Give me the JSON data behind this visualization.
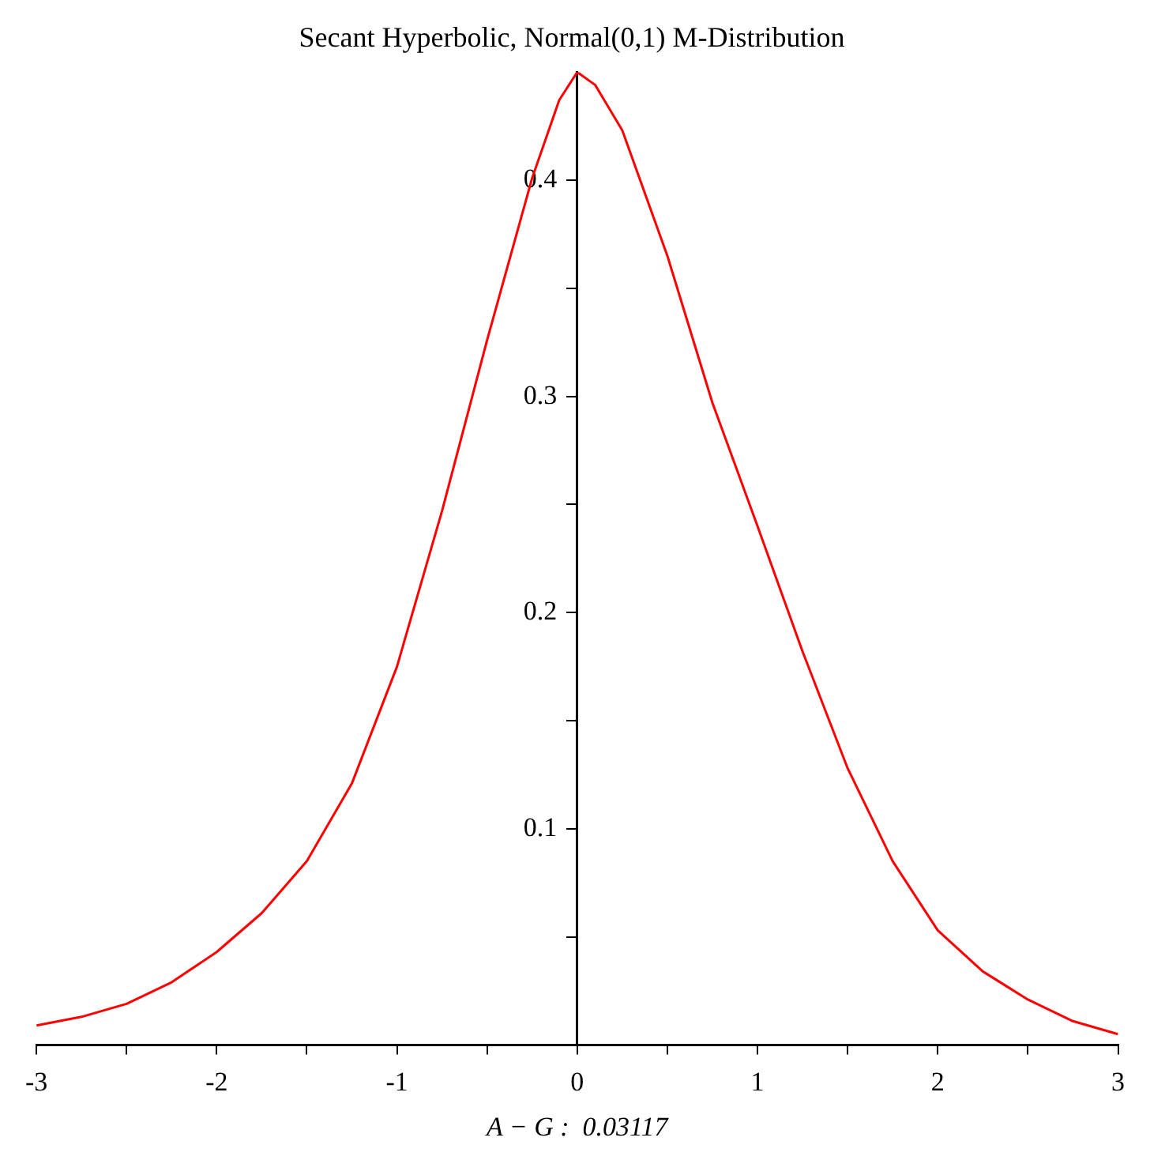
{
  "chart_data": {
    "type": "line",
    "title": "Secant Hyperbolic, Normal(0,1) M-Distribution",
    "xlabel": "A − G :  0.03117",
    "x": [
      -3,
      -2.75,
      -2.5,
      -2.25,
      -2,
      -1.75,
      -1.5,
      -1.25,
      -1,
      -0.75,
      -0.5,
      -0.25,
      -0.1,
      0,
      0.1,
      0.25,
      0.5,
      0.75,
      1,
      1.25,
      1.5,
      1.75,
      2,
      2.25,
      2.5,
      2.75,
      3
    ],
    "series": [
      {
        "color": "#ff0000",
        "values": [
          0.009,
          0.013,
          0.019,
          0.029,
          0.043,
          0.061,
          0.085,
          0.121,
          0.175,
          0.247,
          0.326,
          0.401,
          0.437,
          0.45,
          0.444,
          0.423,
          0.365,
          0.297,
          0.24,
          0.182,
          0.128,
          0.085,
          0.053,
          0.034,
          0.021,
          0.011,
          0.005
        ]
      }
    ],
    "xlim": [
      -3,
      3
    ],
    "ylim": [
      0,
      0.45
    ],
    "xticks": [
      -3,
      {
        "value": -2.5,
        "label": null
      },
      -2,
      {
        "value": -1.5,
        "label": null
      },
      -1,
      {
        "value": -0.5,
        "label": null
      },
      0,
      {
        "value": 0.5,
        "label": null
      },
      1,
      {
        "value": 1.5,
        "label": null
      },
      2,
      {
        "value": 2.5,
        "label": null
      },
      3
    ],
    "yticks": [
      {
        "value": 0.05,
        "label": null
      },
      0.1,
      {
        "value": 0.15,
        "label": null
      },
      0.2,
      {
        "value": 0.25,
        "label": null
      },
      0.3,
      {
        "value": 0.35,
        "label": null
      },
      0.4
    ],
    "grid": false,
    "legend": false,
    "marker": "none",
    "line_style": "solid"
  }
}
